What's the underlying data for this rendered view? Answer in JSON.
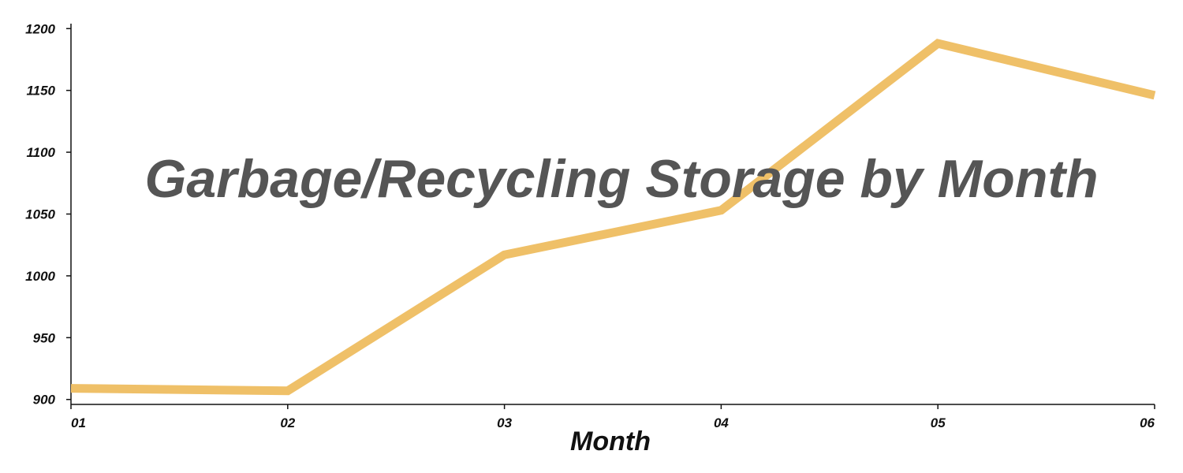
{
  "chart_data": {
    "type": "line",
    "title": "Garbage/Recycling Storage by Month",
    "xlabel": "Month",
    "ylabel": "",
    "categories": [
      "01",
      "02",
      "03",
      "04",
      "05",
      "06"
    ],
    "series": [
      {
        "values": [
          909,
          907,
          1017,
          1053,
          1188,
          1146
        ],
        "color": "#EFC068"
      }
    ],
    "yticks": [
      900,
      950,
      1000,
      1050,
      1100,
      1150,
      1200
    ],
    "ylim": [
      896,
      1204
    ],
    "grid": false,
    "legend": "none"
  }
}
